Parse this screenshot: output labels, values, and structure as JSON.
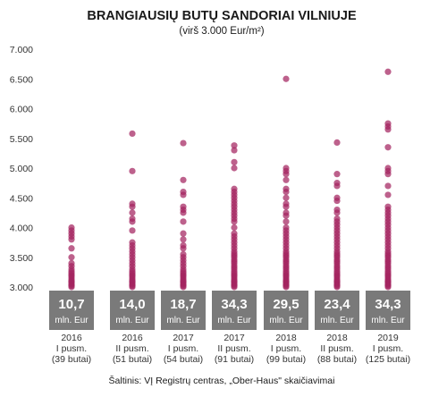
{
  "chart_data": {
    "type": "scatter",
    "title": "BRANGIAUSIŲ BUTŲ SANDORIAI VILNIUJE",
    "subtitle": "(virš 3.000 Eur/m²)",
    "ylim": [
      3000,
      7000
    ],
    "yticks": [
      "3.000",
      "3.500",
      "4.000",
      "4.500",
      "5.000",
      "5.500",
      "6.000",
      "6.500",
      "7.000"
    ],
    "ytick_values": [
      3000,
      3500,
      4000,
      4500,
      5000,
      5500,
      6000,
      6500,
      7000
    ],
    "grid": false,
    "point_color": "#a3245f",
    "box_color": "#7a7a7a",
    "categories": [
      {
        "year": "2016",
        "half": "I pusm.",
        "count": "(39 butai)",
        "value": "10,7",
        "unit": "mln. Eur",
        "points": [
          3000,
          3020,
          3040,
          3060,
          3080,
          3100,
          3120,
          3150,
          3180,
          3200,
          3230,
          3260,
          3300,
          3350,
          3400,
          3500,
          3650,
          3800,
          3850,
          3900,
          3950,
          4000
        ]
      },
      {
        "year": "2016",
        "half": "II pusm.",
        "count": "(51 butai)",
        "value": "14,0",
        "unit": "mln. Eur",
        "points": [
          3000,
          3020,
          3040,
          3060,
          3080,
          3100,
          3120,
          3150,
          3180,
          3200,
          3230,
          3260,
          3300,
          3350,
          3400,
          3450,
          3500,
          3550,
          3600,
          3650,
          3700,
          3750,
          3950,
          4100,
          4150,
          4250,
          4350,
          4400,
          4950,
          5580
        ]
      },
      {
        "year": "2017",
        "half": "I pusm.",
        "count": "(54 butai)",
        "value": "18,7",
        "unit": "mln. Eur",
        "points": [
          3000,
          3020,
          3040,
          3060,
          3080,
          3100,
          3120,
          3150,
          3180,
          3200,
          3230,
          3260,
          3300,
          3350,
          3400,
          3450,
          3500,
          3550,
          3650,
          3700,
          3800,
          3900,
          4100,
          4250,
          4300,
          4350,
          4550,
          4600,
          4800,
          5420
        ]
      },
      {
        "year": "2017",
        "half": "II pusm.",
        "count": "(91 butai)",
        "value": "34,3",
        "unit": "mln. Eur",
        "points": [
          3000,
          3020,
          3040,
          3060,
          3080,
          3100,
          3120,
          3150,
          3180,
          3200,
          3230,
          3260,
          3300,
          3330,
          3360,
          3400,
          3430,
          3460,
          3500,
          3530,
          3560,
          3600,
          3650,
          3700,
          3750,
          3800,
          3850,
          3900,
          4000,
          4100,
          4150,
          4200,
          4250,
          4300,
          4350,
          4400,
          4450,
          4500,
          4550,
          4600,
          4650,
          5000,
          5100,
          5300,
          5380
        ]
      },
      {
        "year": "2018",
        "half": "I pusm.",
        "count": "(99 butai)",
        "value": "29,5",
        "unit": "mln. Eur",
        "points": [
          3000,
          3020,
          3040,
          3060,
          3080,
          3100,
          3120,
          3150,
          3180,
          3200,
          3230,
          3260,
          3300,
          3330,
          3360,
          3400,
          3430,
          3460,
          3500,
          3530,
          3560,
          3600,
          3650,
          3700,
          3750,
          3800,
          3850,
          3900,
          3950,
          4000,
          4100,
          4200,
          4250,
          4350,
          4400,
          4500,
          4600,
          4650,
          4800,
          4900,
          4950,
          5000,
          6500
        ]
      },
      {
        "year": "2018",
        "half": "II pusm.",
        "count": "(88 butai)",
        "value": "23,4",
        "unit": "mln. Eur",
        "points": [
          3000,
          3020,
          3040,
          3060,
          3080,
          3100,
          3120,
          3150,
          3180,
          3200,
          3230,
          3260,
          3300,
          3330,
          3360,
          3400,
          3430,
          3460,
          3500,
          3530,
          3560,
          3600,
          3650,
          3700,
          3750,
          3800,
          3850,
          3900,
          3950,
          4000,
          4050,
          4100,
          4150,
          4250,
          4300,
          4450,
          4500,
          4700,
          4750,
          4900,
          5430
        ]
      },
      {
        "year": "2019",
        "half": "I pusm.",
        "count": "(125 butai)",
        "value": "34,3",
        "unit": "mln. Eur",
        "points": [
          3000,
          3020,
          3040,
          3060,
          3080,
          3100,
          3120,
          3150,
          3180,
          3200,
          3230,
          3260,
          3300,
          3330,
          3360,
          3400,
          3430,
          3460,
          3500,
          3530,
          3560,
          3600,
          3650,
          3700,
          3750,
          3800,
          3850,
          3900,
          3950,
          4000,
          4050,
          4100,
          4150,
          4200,
          4250,
          4300,
          4350,
          4550,
          4700,
          4900,
          4950,
          5000,
          5350,
          5650,
          5700,
          5750,
          6620
        ]
      }
    ]
  },
  "source": "Šaltinis: VĮ Registrų centras, „Ober-Haus\" skaičiavimai"
}
